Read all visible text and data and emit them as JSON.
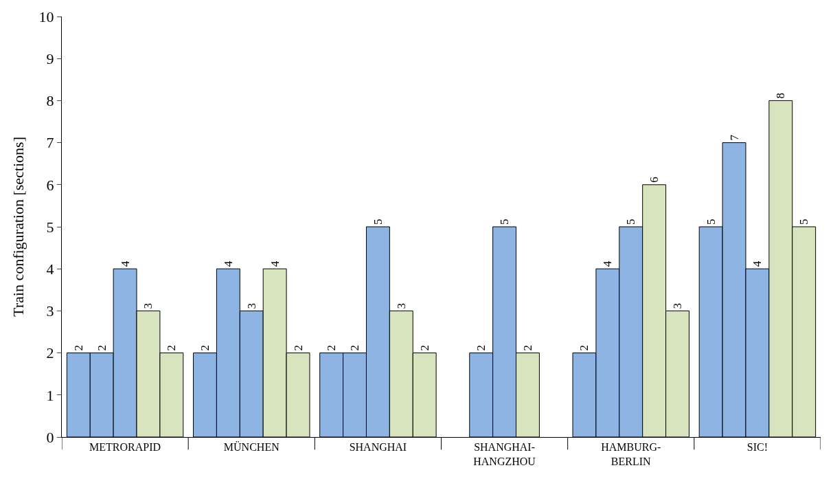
{
  "chart_data": {
    "type": "bar",
    "ylabel": "Train configuration [sections]",
    "categories": [
      "METRORAPID",
      "MÜNCHEN",
      "SHANGHAI",
      "SHANGHAI-\nHANGZHOU",
      "HAMBURG-\nBERLIN",
      "SIC!"
    ],
    "series": [
      {
        "color": "#8db4e2",
        "values": [
          2,
          2,
          2,
          null,
          2,
          5
        ]
      },
      {
        "color": "#8db4e2",
        "values": [
          2,
          4,
          2,
          2,
          4,
          7
        ]
      },
      {
        "color": "#8db4e2",
        "values": [
          4,
          3,
          5,
          5,
          5,
          4
        ]
      },
      {
        "color": "#d7e4bd",
        "values": [
          3,
          4,
          3,
          2,
          6,
          8
        ]
      },
      {
        "color": "#d7e4bd",
        "values": [
          2,
          2,
          2,
          null,
          3,
          5
        ]
      }
    ],
    "ylim": [
      0,
      10
    ],
    "yticks": [
      0,
      1,
      2,
      3,
      4,
      5,
      6,
      7,
      8,
      9,
      10
    ],
    "data_labels": true
  }
}
